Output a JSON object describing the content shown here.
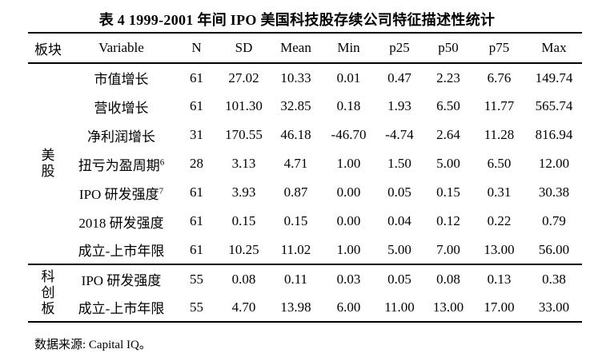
{
  "title": "表 4 1999-2001 年间 IPO 美国科技股存续公司特征描述性统计",
  "colors": {
    "background": "#ffffff",
    "text": "#000000",
    "rule": "#000000"
  },
  "table": {
    "headers": [
      "板块",
      "Variable",
      "N",
      "SD",
      "Mean",
      "Min",
      "p25",
      "p50",
      "p75",
      "Max"
    ],
    "groups": [
      {
        "label": "美股",
        "rows": [
          {
            "variable": "市值增长",
            "sup": "",
            "values": [
              "61",
              "27.02",
              "10.33",
              "0.01",
              "0.47",
              "2.23",
              "6.76",
              "149.74"
            ]
          },
          {
            "variable": "营收增长",
            "sup": "",
            "values": [
              "61",
              "101.30",
              "32.85",
              "0.18",
              "1.93",
              "6.50",
              "11.77",
              "565.74"
            ]
          },
          {
            "variable": "净利润增长",
            "sup": "",
            "values": [
              "31",
              "170.55",
              "46.18",
              "-46.70",
              "-4.74",
              "2.64",
              "11.28",
              "816.94"
            ]
          },
          {
            "variable": "扭亏为盈周期",
            "sup": "6",
            "values": [
              "28",
              "3.13",
              "4.71",
              "1.00",
              "1.50",
              "5.00",
              "6.50",
              "12.00"
            ]
          },
          {
            "variable": "IPO 研发强度",
            "sup": "7",
            "values": [
              "61",
              "3.93",
              "0.87",
              "0.00",
              "0.05",
              "0.15",
              "0.31",
              "30.38"
            ]
          },
          {
            "variable": "2018 研发强度",
            "sup": "",
            "values": [
              "61",
              "0.15",
              "0.15",
              "0.00",
              "0.04",
              "0.12",
              "0.22",
              "0.79"
            ]
          },
          {
            "variable": "成立-上市年限",
            "sup": "",
            "values": [
              "61",
              "10.25",
              "11.02",
              "1.00",
              "5.00",
              "7.00",
              "13.00",
              "56.00"
            ]
          }
        ]
      },
      {
        "label": "科创板",
        "rows": [
          {
            "variable": "IPO 研发强度",
            "sup": "",
            "values": [
              "55",
              "0.08",
              "0.11",
              "0.03",
              "0.05",
              "0.08",
              "0.13",
              "0.38"
            ]
          },
          {
            "variable": "成立-上市年限",
            "sup": "",
            "values": [
              "55",
              "4.70",
              "13.98",
              "6.00",
              "11.00",
              "13.00",
              "17.00",
              "33.00"
            ]
          }
        ]
      }
    ]
  },
  "footer": "数据来源: Capital IQ。"
}
